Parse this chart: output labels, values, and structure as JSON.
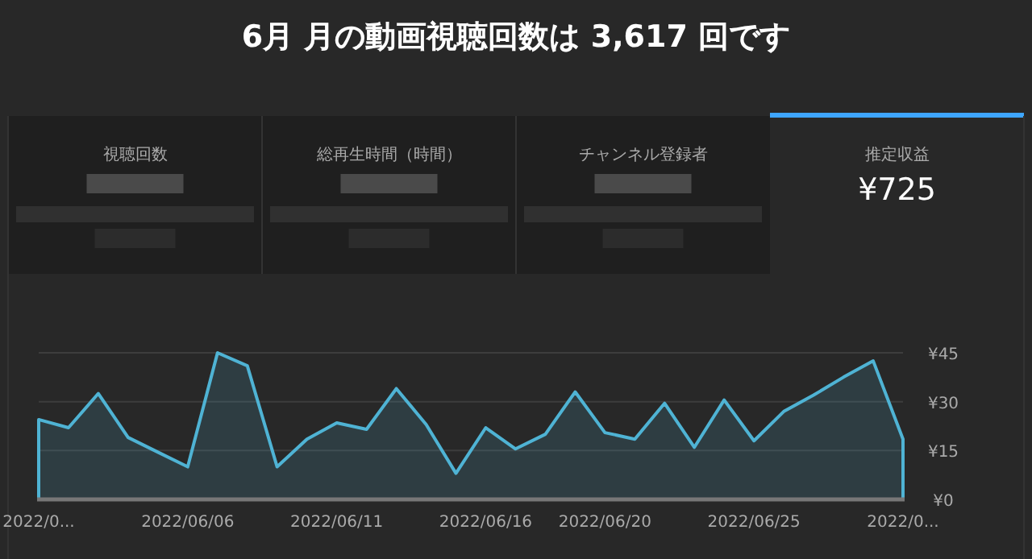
{
  "chart_data": [
    {
      "type": "other",
      "title": "6月 月の動画視聴回数は 3,617 回です",
      "annotations": [
        "視聴回数",
        "総再生時間（時間）",
        "チャンネル登録者",
        "推定収益",
        "¥725"
      ]
    },
    {
      "type": "area",
      "categories": [
        "2022/0...",
        null,
        null,
        null,
        null,
        "2022/06/06",
        null,
        null,
        null,
        null,
        "2022/06/11",
        null,
        null,
        null,
        null,
        "2022/06/16",
        null,
        null,
        null,
        "2022/06/20",
        null,
        null,
        null,
        null,
        "2022/06/25",
        null,
        null,
        null,
        null,
        "2022/0..."
      ],
      "series": [
        {
          "color": "#4fb3d4",
          "values": [
            24.5,
            22,
            32.5,
            19,
            14.5,
            10,
            45,
            41,
            10,
            18.5,
            23.5,
            21.5,
            34,
            23,
            8,
            22,
            15.5,
            20,
            33,
            20.5,
            18.5,
            29.5,
            16,
            30.5,
            18,
            27,
            32,
            37.5,
            42.5,
            18.5
          ]
        }
      ],
      "ylim": [
        0,
        45
      ],
      "yticks": [
        {
          "value": 0,
          "label": "¥0"
        },
        {
          "value": 15,
          "label": "¥15"
        },
        {
          "value": 30,
          "label": "¥30"
        },
        {
          "value": 45,
          "label": "¥45"
        }
      ],
      "grid": "y"
    }
  ]
}
